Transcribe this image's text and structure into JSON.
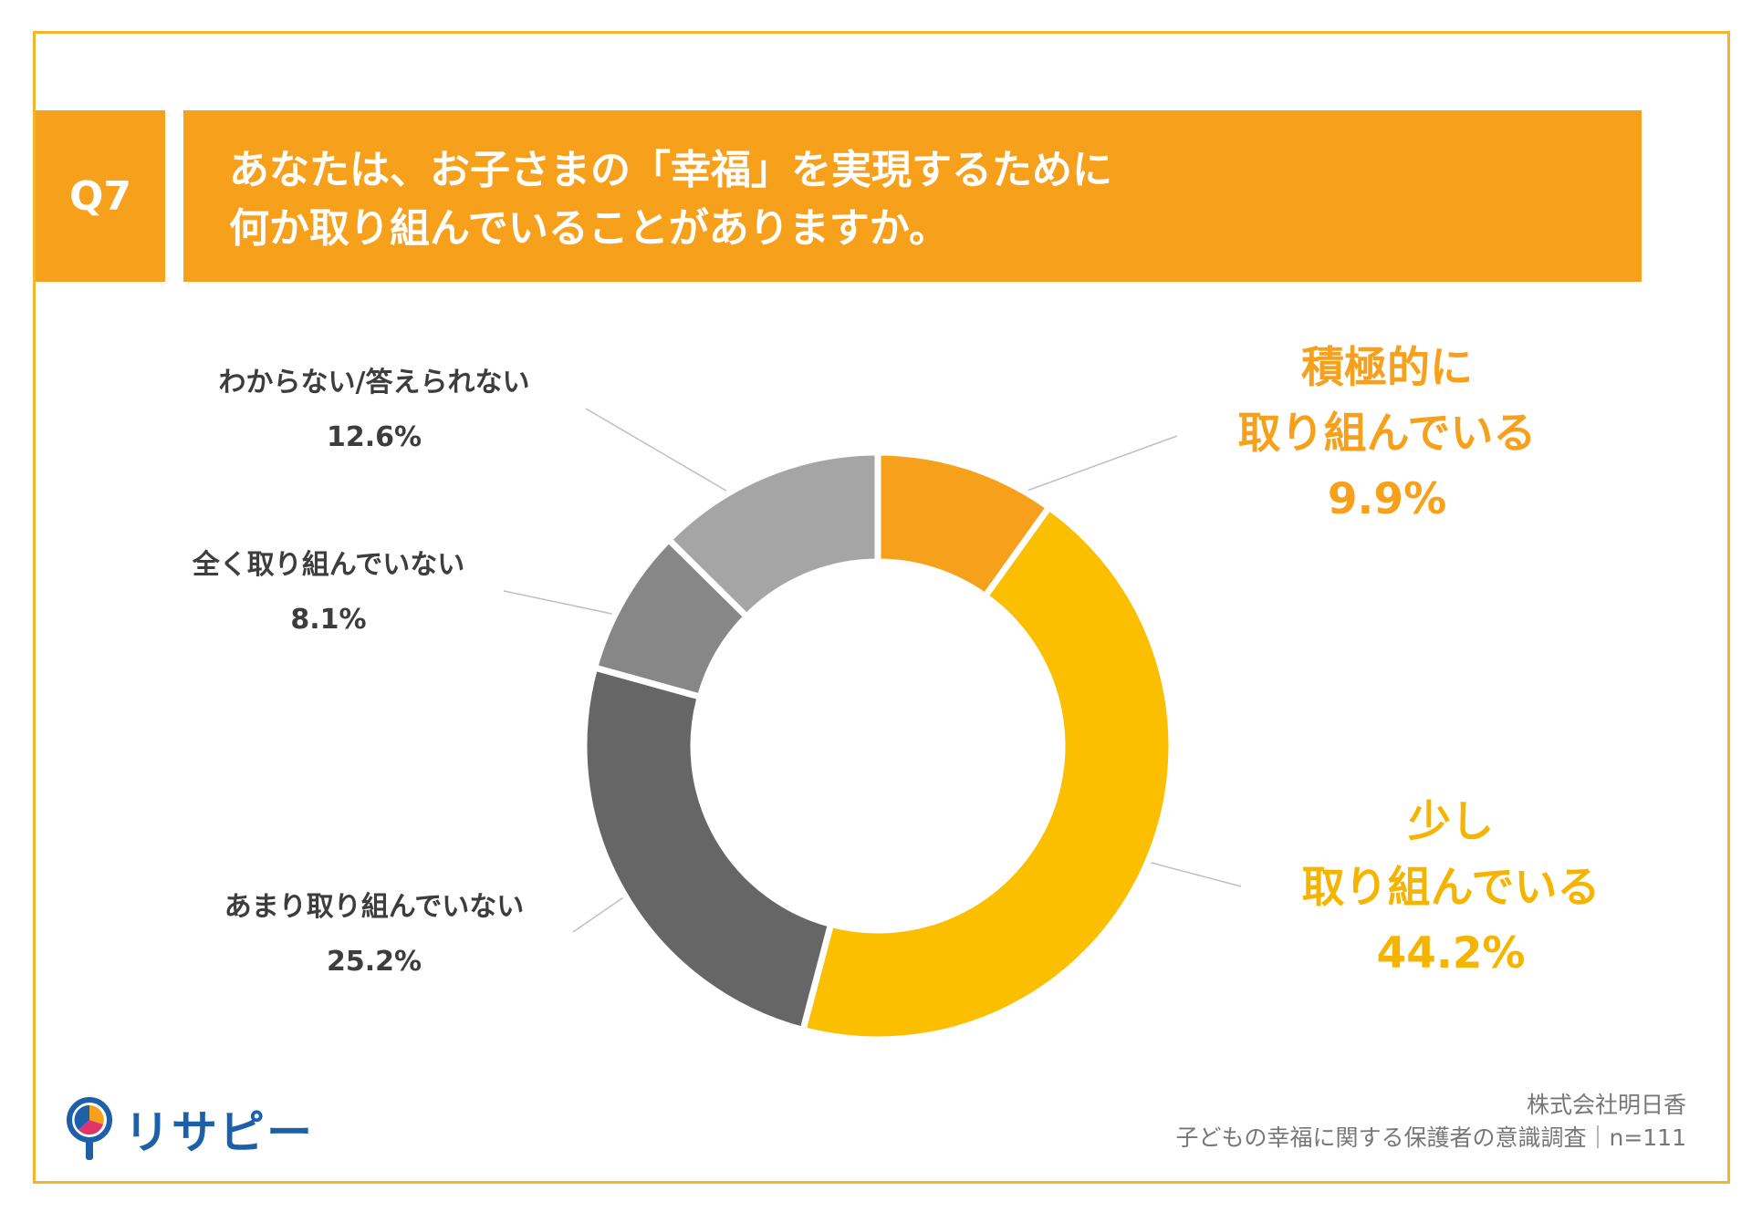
{
  "header": {
    "q_label": "Q7",
    "title_line1": "あなたは、お子さまの「幸福」を実現するために",
    "title_line2": "何か取り組んでいることがありますか。"
  },
  "chart_data": {
    "type": "pie",
    "variant": "donut",
    "title": "あなたは、お子さまの「幸福」を実現するために何か取り組んでいることがありますか。",
    "slices": [
      {
        "label_lines": [
          "積極的に",
          "取り組んでいる"
        ],
        "label": "積極的に取り組んでいる",
        "value": 9.9,
        "value_text": "9.9%",
        "color": "#f7a01c"
      },
      {
        "label_lines": [
          "少し",
          "取り組んでいる"
        ],
        "label": "少し取り組んでいる",
        "value": 44.2,
        "value_text": "44.2%",
        "color": "#fbbf00"
      },
      {
        "label_lines": [
          "あまり取り組んでいない"
        ],
        "label": "あまり取り組んでいない",
        "value": 25.2,
        "value_text": "25.2%",
        "color": "#666666"
      },
      {
        "label_lines": [
          "全く取り組んでいない"
        ],
        "label": "全く取り組んでいない",
        "value": 8.1,
        "value_text": "8.1%",
        "color": "#878787"
      },
      {
        "label_lines": [
          "わからない/答えられない"
        ],
        "label": "わからない/答えられない",
        "value": 12.6,
        "value_text": "12.6%",
        "color": "#a5a5a5"
      }
    ]
  },
  "footer": {
    "company": "株式会社明日香",
    "survey": "子どもの幸福に関する保護者の意識調査｜n=111"
  },
  "logo": {
    "text": "リサピー",
    "colors": {
      "brand": "#1b60a8",
      "accent1": "#f7a01c",
      "accent2": "#e2336b"
    }
  }
}
